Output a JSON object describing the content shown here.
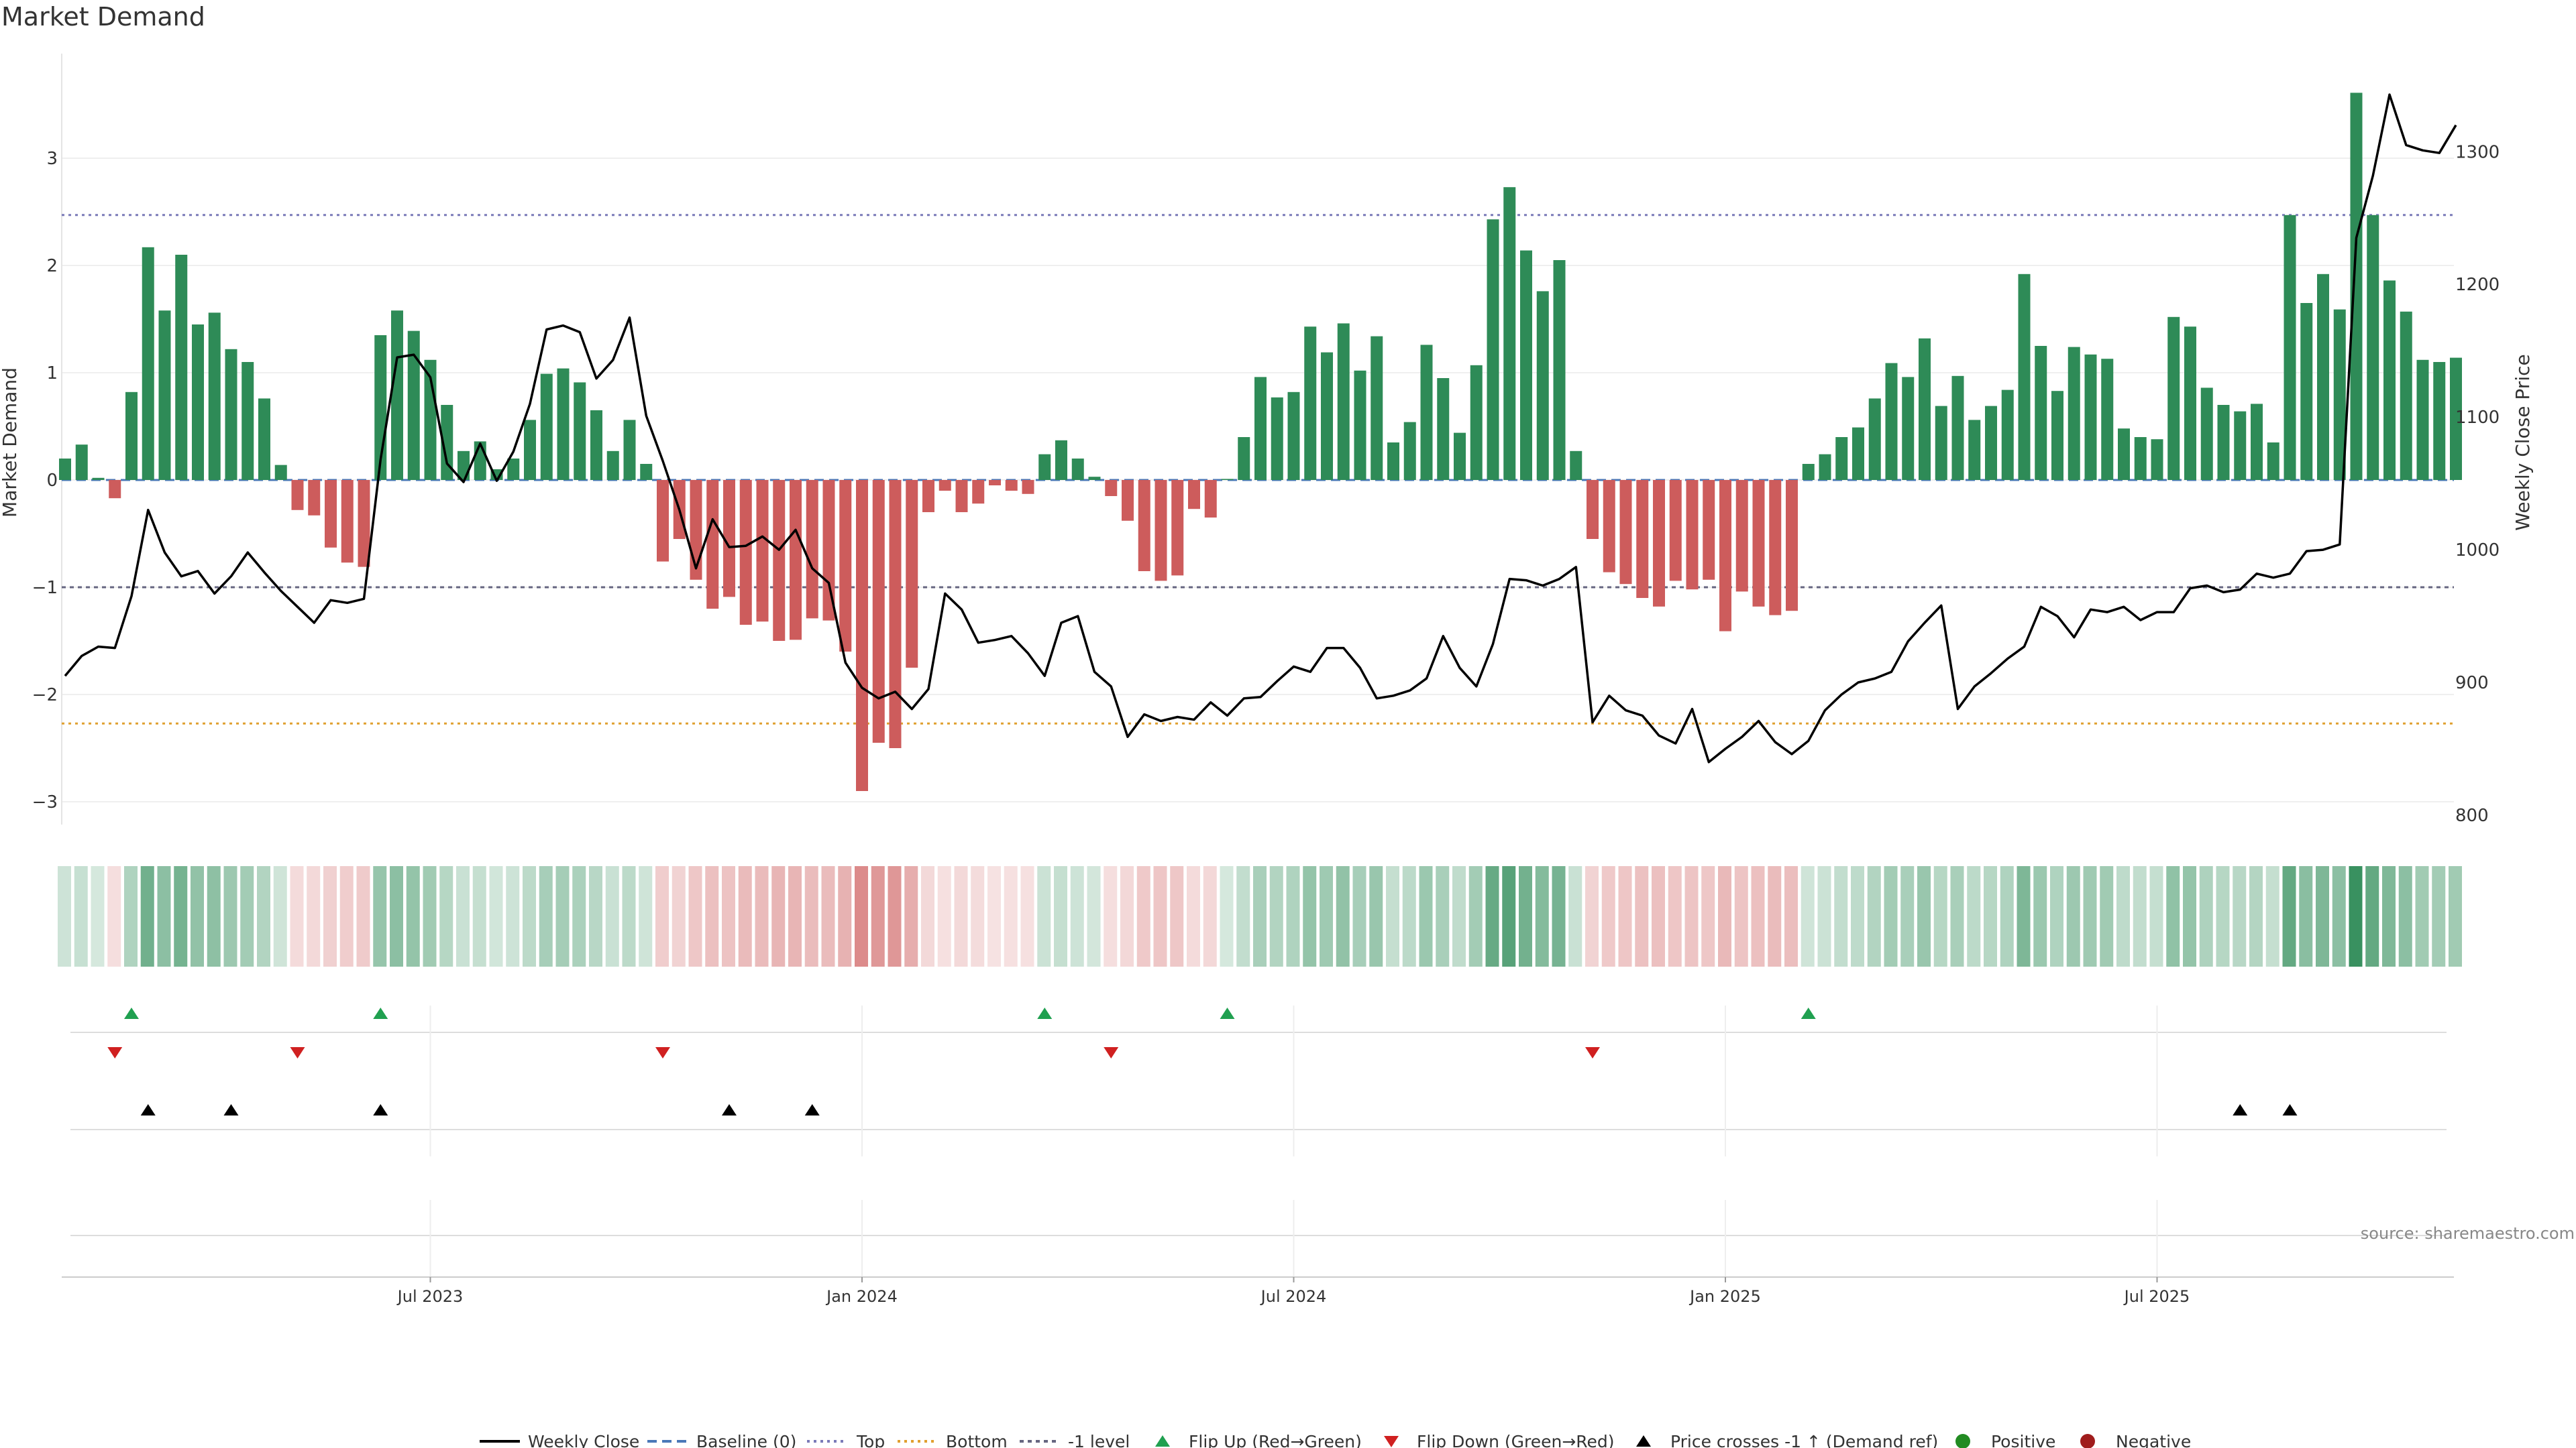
{
  "chart_data": {
    "type": "bar",
    "title": "Market Demand",
    "ylabel_left": "Market Demand",
    "ylabel_right": "Weekly Close Price",
    "xlabel": "",
    "source": "source: sharemaestro.com",
    "ylim_left": [
      -3.2,
      4.0
    ],
    "ylim_right": [
      790,
      1350
    ],
    "yticks_left": [
      "3",
      "2",
      "1",
      "0",
      "−1",
      "−2",
      "−3"
    ],
    "yticks_left_values": [
      3,
      2,
      1,
      0,
      -1,
      -2,
      -3
    ],
    "yticks_right": [
      "1300",
      "1200",
      "1100",
      "1000",
      "900",
      "800"
    ],
    "yticks_right_values": [
      1300,
      1200,
      1100,
      1000,
      900,
      800
    ],
    "x_tick_labels": [
      "Jul 2023",
      "Jan 2024",
      "Jul 2024",
      "Jan 2025",
      "Jul 2025"
    ],
    "x_tick_weeks": [
      22,
      48,
      74,
      100,
      126
    ],
    "reference_lines": {
      "top": 2.47,
      "bottom": -2.27,
      "minus_one": -1.0,
      "baseline": 0
    },
    "demand": [
      0.2,
      0.33,
      0.02,
      -0.17,
      0.82,
      2.17,
      1.58,
      2.1,
      1.45,
      1.56,
      1.22,
      1.1,
      0.76,
      0.14,
      -0.28,
      -0.33,
      -0.63,
      -0.77,
      -0.81,
      1.35,
      1.58,
      1.39,
      1.12,
      0.7,
      0.27,
      0.36,
      0.1,
      0.2,
      0.56,
      0.99,
      1.04,
      0.91,
      0.65,
      0.27,
      0.56,
      0.15,
      -0.76,
      -0.55,
      -0.93,
      -1.2,
      -1.09,
      -1.35,
      -1.32,
      -1.5,
      -1.49,
      -1.29,
      -1.31,
      -1.6,
      -2.9,
      -2.45,
      -2.5,
      -1.75,
      -0.3,
      -0.1,
      -0.3,
      -0.22,
      -0.05,
      -0.1,
      -0.13,
      0.24,
      0.37,
      0.2,
      0.03,
      -0.15,
      -0.38,
      -0.85,
      -0.94,
      -0.89,
      -0.27,
      -0.35,
      0.01,
      0.4,
      0.96,
      0.77,
      0.82,
      1.43,
      1.19,
      1.46,
      1.02,
      1.34,
      0.35,
      0.54,
      1.26,
      0.95,
      0.44,
      1.07,
      2.43,
      2.73,
      2.14,
      1.76,
      2.05,
      0.27,
      -0.55,
      -0.86,
      -0.97,
      -1.1,
      -1.18,
      -0.94,
      -1.02,
      -0.93,
      -1.41,
      -1.04,
      -1.18,
      -1.26,
      -1.22,
      0.15,
      0.24,
      0.4,
      0.49,
      0.76,
      1.09,
      0.96,
      1.32,
      0.69,
      0.97,
      0.56,
      0.69,
      0.84,
      1.92,
      1.25,
      0.83,
      1.24,
      1.17,
      1.13,
      0.48,
      0.4,
      0.38,
      1.52,
      1.43,
      0.86,
      0.7,
      0.64,
      0.71,
      0.35,
      2.47,
      1.65,
      1.92,
      1.59,
      3.61,
      2.47,
      1.86,
      1.57,
      1.12,
      1.1,
      1.14
    ],
    "price": [
      905,
      920,
      927,
      926,
      965,
      1030,
      998,
      980,
      984,
      967,
      980,
      998,
      983,
      969,
      957,
      945,
      962,
      960,
      963,
      1068,
      1145,
      1147,
      1130,
      1065,
      1051,
      1080,
      1052,
      1074,
      1110,
      1166,
      1169,
      1164,
      1129,
      1143,
      1175,
      1101,
      1067,
      1030,
      986,
      1023,
      1002,
      1003,
      1010,
      1000,
      1015,
      986,
      975,
      915,
      896,
      888,
      893,
      880,
      895,
      967,
      955,
      930,
      932,
      935,
      922,
      905,
      945,
      950,
      908,
      897,
      859,
      876,
      871,
      874,
      872,
      885,
      875,
      888,
      889,
      901,
      912,
      908,
      926,
      926,
      911,
      888,
      890,
      894,
      903,
      935,
      911,
      897,
      929,
      978,
      977,
      973,
      978,
      987,
      870,
      890,
      879,
      875,
      860,
      854,
      880,
      840,
      850,
      859,
      871,
      855,
      846,
      856,
      879,
      891,
      900,
      903,
      908,
      931,
      945,
      958,
      880,
      897,
      907,
      918,
      927,
      957,
      950,
      934,
      955,
      953,
      957,
      947,
      953,
      953,
      971,
      973,
      968,
      970,
      982,
      979,
      982,
      999,
      1000,
      1004,
      1235,
      1282,
      1343,
      1305,
      1301,
      1299,
      1320
    ],
    "flip_up_weeks": [
      4,
      19,
      59,
      70,
      105
    ],
    "flip_down_weeks": [
      3,
      14,
      36,
      63,
      92
    ],
    "price_cross_weeks": [
      5,
      10,
      19,
      40,
      45,
      131,
      134
    ],
    "legend": [
      "Weekly Close",
      "Baseline (0)",
      "Top",
      "Bottom",
      "-1 level",
      "Flip Up (Red→Green)",
      "Flip Down (Green→Red)",
      "Price crosses -1 ↑ (Demand ref)",
      "Positive",
      "Negative"
    ],
    "colors": {
      "positive": "#2e8b57",
      "negative": "#cd5c5c",
      "price_line": "#000000",
      "baseline": "#4a78b8",
      "top_line": "#7a7ab8",
      "bottom_line": "#e0a030",
      "minus_one_line": "#666680",
      "flip_up": "#20a050",
      "flip_down": "#d02020",
      "cross": "#000000",
      "legend_positive": "#228b22",
      "legend_negative": "#a01c1c"
    }
  }
}
